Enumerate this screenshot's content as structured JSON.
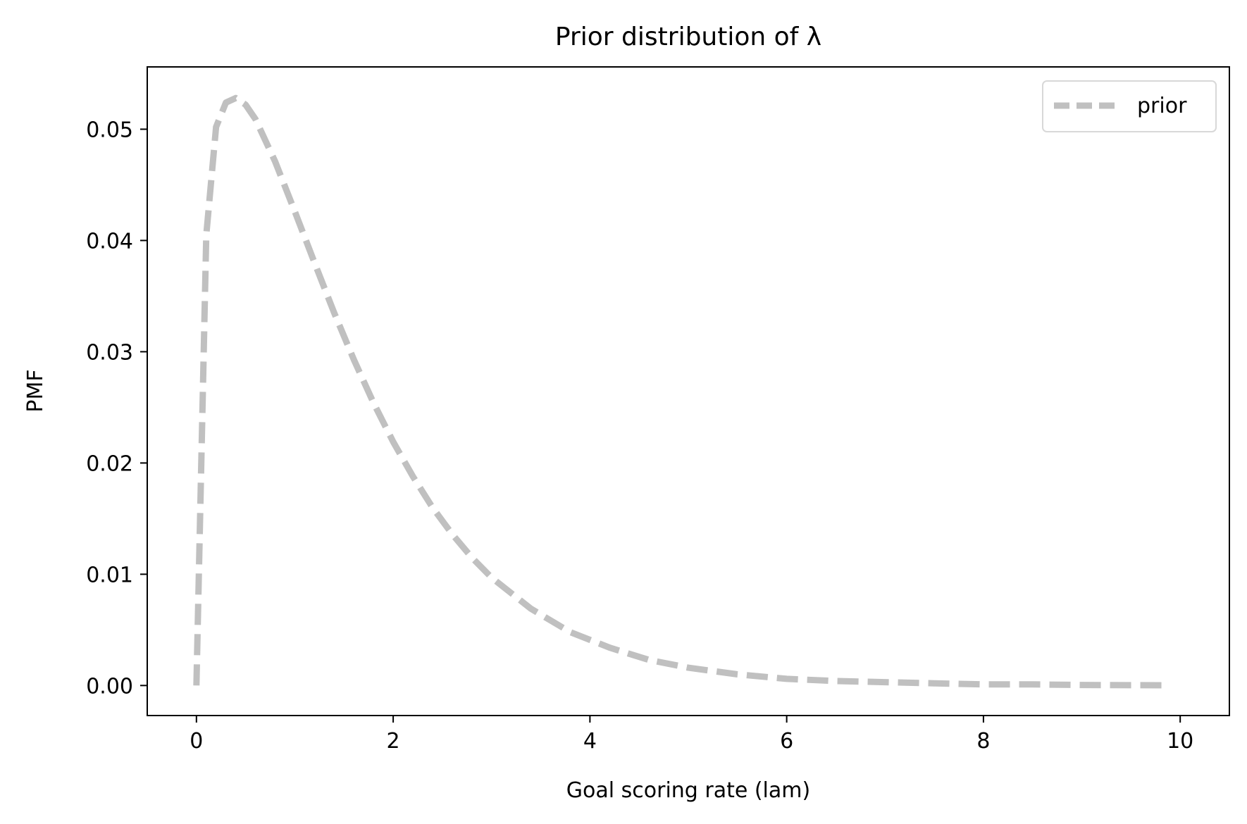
{
  "chart_data": {
    "type": "line",
    "title": "Prior distribution of λ",
    "xlabel": "Goal scoring rate (lam)",
    "ylabel": "PMF",
    "xlim": [
      -0.5,
      10.5
    ],
    "ylim": [
      -0.0027,
      0.0556
    ],
    "xticks": [
      0,
      2,
      4,
      6,
      8,
      10
    ],
    "yticks": [
      0.0,
      0.01,
      0.02,
      0.03,
      0.04,
      0.05
    ],
    "xtick_labels": [
      "0",
      "2",
      "4",
      "6",
      "8",
      "10"
    ],
    "ytick_labels": [
      "0.00",
      "0.01",
      "0.02",
      "0.03",
      "0.04",
      "0.05"
    ],
    "grid": false,
    "legend_position": "upper-right",
    "colors": {
      "series": "#c0c0c0",
      "axes": "#000000"
    },
    "series": [
      {
        "name": "prior",
        "style": "dashed",
        "x": [
          0.0,
          0.1,
          0.2,
          0.3,
          0.4,
          0.5,
          0.6,
          0.8,
          1.0,
          1.2,
          1.4,
          1.6,
          1.8,
          2.0,
          2.2,
          2.4,
          2.6,
          2.8,
          3.0,
          3.4,
          3.8,
          4.2,
          4.6,
          5.0,
          5.5,
          6.0,
          6.5,
          7.0,
          7.5,
          8.0,
          8.5,
          9.0,
          9.5,
          9.9
        ],
        "y": [
          0.0,
          0.0405,
          0.0502,
          0.0524,
          0.0528,
          0.0522,
          0.0509,
          0.0471,
          0.0426,
          0.038,
          0.0335,
          0.0293,
          0.0254,
          0.0219,
          0.0188,
          0.016,
          0.0136,
          0.0115,
          0.0097,
          0.0069,
          0.0048,
          0.0034,
          0.0023,
          0.0016,
          0.001,
          0.0006,
          0.0004,
          0.0003,
          0.0002,
          0.0001,
          0.0001,
          5e-05,
          3e-05,
          2e-05
        ]
      }
    ]
  }
}
